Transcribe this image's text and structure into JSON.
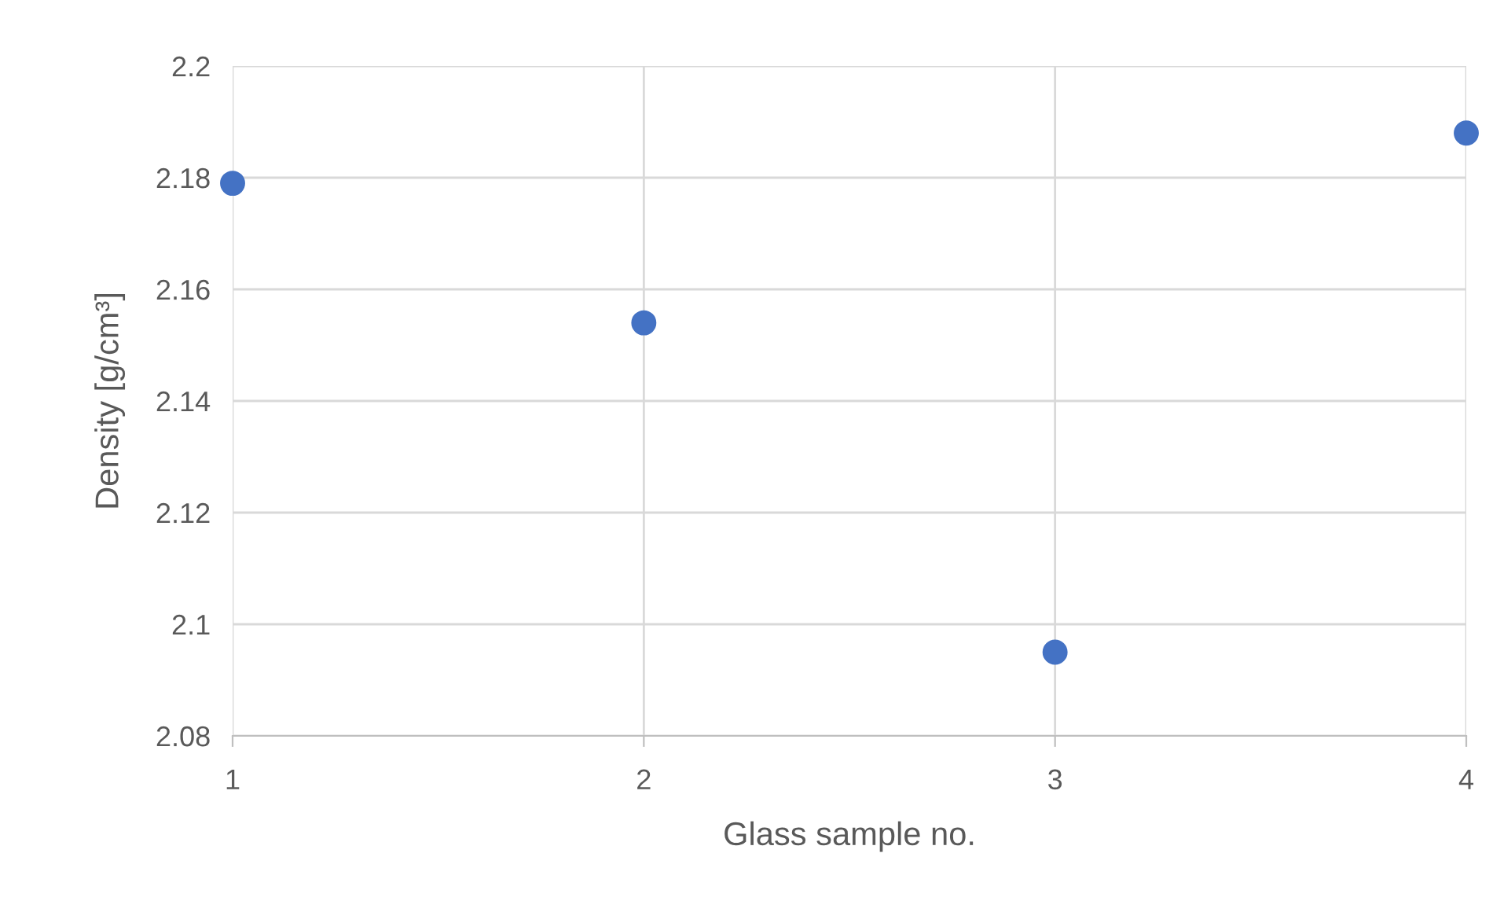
{
  "chart_data": {
    "type": "scatter",
    "xlabel": "Glass sample no.",
    "ylabel": "Density [g/cm³]",
    "x": [
      1,
      2,
      3,
      4
    ],
    "series": [
      {
        "color": "#4472c4",
        "values": [
          2.179,
          2.154,
          2.095,
          2.188
        ]
      }
    ],
    "xlim": [
      1,
      4
    ],
    "xticks": [
      1,
      2,
      3,
      4
    ],
    "ylim": [
      2.08,
      2.2
    ],
    "yticks": [
      {
        "value": 2.08,
        "label": "2.08"
      },
      {
        "value": 2.1,
        "label": "2.1"
      },
      {
        "value": 2.12,
        "label": "2.12"
      },
      {
        "value": 2.14,
        "label": "2.14"
      },
      {
        "value": 2.16,
        "label": "2.16"
      },
      {
        "value": 2.18,
        "label": "2.18"
      },
      {
        "value": 2.2,
        "label": "2.2"
      }
    ],
    "grid": true,
    "marker": "circle"
  }
}
